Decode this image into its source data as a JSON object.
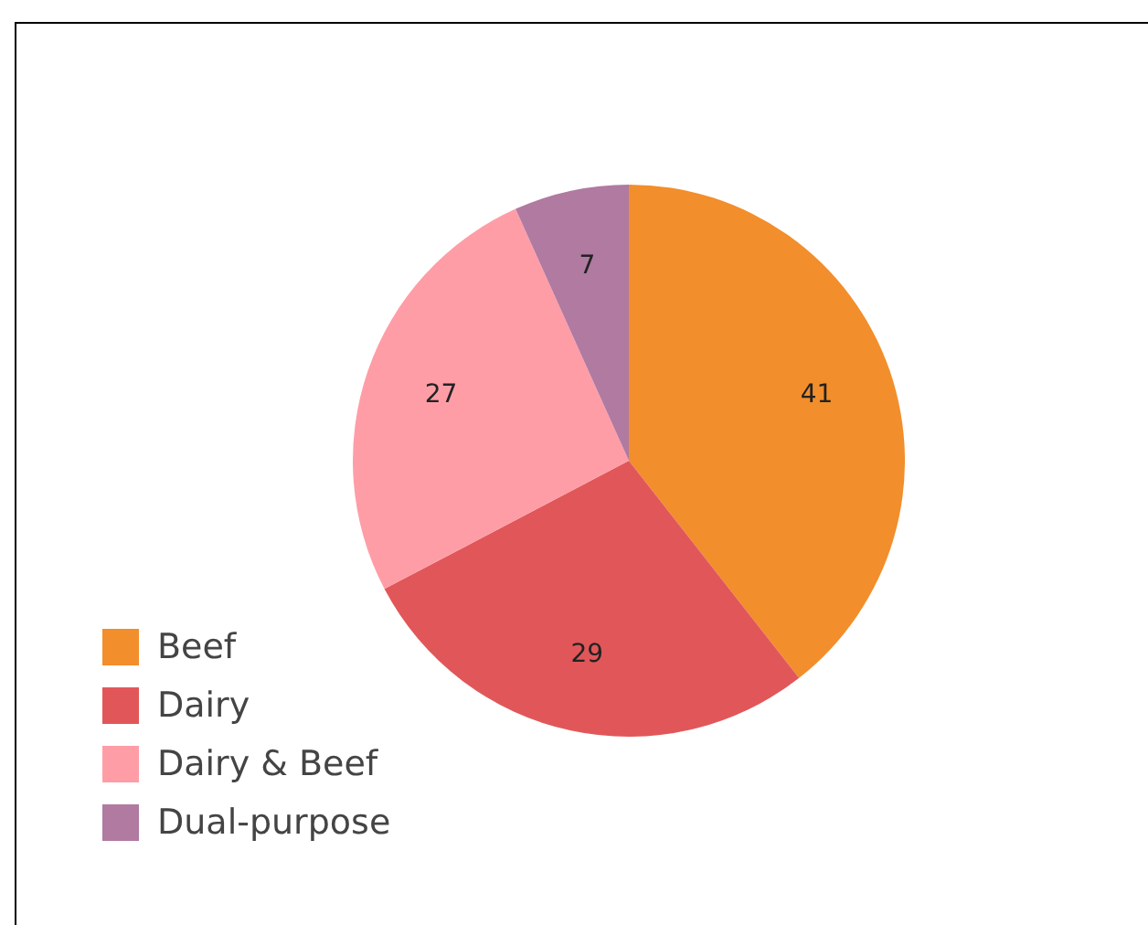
{
  "chart_data": {
    "type": "pie",
    "categories": [
      "Beef",
      "Dairy",
      "Dairy & Beef",
      "Dual-purpose"
    ],
    "values": [
      41,
      29,
      27,
      7
    ],
    "colors": [
      "#f28e2b",
      "#e15759",
      "#ff9da7",
      "#b07aa1"
    ],
    "data_labels": true,
    "legend": "bottom left"
  }
}
